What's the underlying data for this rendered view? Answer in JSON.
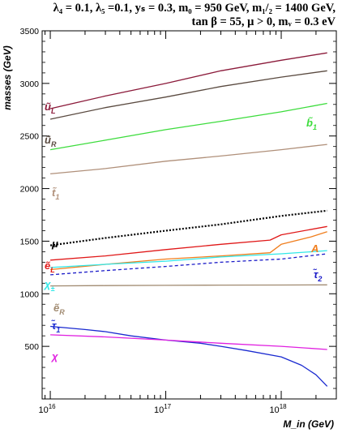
{
  "header": {
    "line1": "λ₄ = 0.1, λ₅ =0.1, yₛ = 0.3, m₀ = 950 GeV, m₁/₂ = 1400 GeV,",
    "line2": "tan β = 55,  μ > 0, mᵥ = 0.3 eV"
  },
  "chart_data": {
    "type": "line",
    "title": "",
    "xlabel": "M_in  (GeV)",
    "ylabel": "masses  (GeV)",
    "xscale": "log",
    "xlim": [
      8500000000000000.0,
      3e+18
    ],
    "ylim": [
      0,
      3500
    ],
    "xticks": [
      1e+16,
      1e+17,
      1e+18
    ],
    "xtick_labels": [
      "10^16",
      "10^17",
      "10^18"
    ],
    "yticks": [
      500,
      1000,
      1500,
      2000,
      2500,
      3000,
      3500
    ],
    "grid": false,
    "legend": "none",
    "series": [
      {
        "name": "ũ_L",
        "color": "#8b1a3a",
        "dash": "solid",
        "x": [
          1e+16,
          3e+16,
          1e+17,
          3e+17,
          1e+18,
          2.5e+18
        ],
        "y": [
          2760,
          2880,
          3000,
          3120,
          3220,
          3290
        ]
      },
      {
        "name": "ũ_R",
        "color": "#5a4a40",
        "dash": "solid",
        "x": [
          1e+16,
          3e+16,
          1e+17,
          3e+17,
          1e+18,
          2.5e+18
        ],
        "y": [
          2660,
          2770,
          2870,
          2970,
          3060,
          3120
        ]
      },
      {
        "name": "b̃₁",
        "color": "#3cdc3c",
        "dash": "solid",
        "x": [
          1e+16,
          3e+16,
          1e+17,
          3e+17,
          1e+18,
          2.5e+18
        ],
        "y": [
          2370,
          2460,
          2560,
          2640,
          2730,
          2810
        ]
      },
      {
        "name": "t̃₁",
        "color": "#b0907a",
        "dash": "solid",
        "x": [
          1e+16,
          3e+16,
          1e+17,
          3e+17,
          1e+18,
          2.5e+18
        ],
        "y": [
          2140,
          2190,
          2260,
          2310,
          2370,
          2420
        ]
      },
      {
        "name": "μ",
        "color": "#000000",
        "dash": "dotted",
        "x": [
          1e+16,
          3e+16,
          1e+17,
          3e+17,
          1e+18,
          2.5e+18
        ],
        "y": [
          1460,
          1530,
          1600,
          1660,
          1740,
          1790
        ]
      },
      {
        "name": "ẽ_L",
        "color": "#e01818",
        "dash": "solid",
        "x": [
          1e+16,
          3e+16,
          1e+17,
          3e+17,
          8e+17,
          1e+18,
          2.5e+18
        ],
        "y": [
          1320,
          1360,
          1420,
          1470,
          1510,
          1560,
          1640
        ]
      },
      {
        "name": "A",
        "color": "#f07e1e",
        "dash": "solid",
        "x": [
          1e+16,
          3e+16,
          1e+17,
          3e+17,
          8e+17,
          1e+18,
          1.8e+18,
          2.5e+18
        ],
        "y": [
          1230,
          1280,
          1330,
          1360,
          1390,
          1470,
          1540,
          1590
        ]
      },
      {
        "name": "χ±",
        "color": "#30e8e8",
        "dash": "solid",
        "x": [
          1e+16,
          3e+16,
          1e+17,
          3e+17,
          1e+18,
          2.5e+18
        ],
        "y": [
          1250,
          1280,
          1310,
          1350,
          1380,
          1410
        ]
      },
      {
        "name": "τ̃₂",
        "color": "#1a1ac8",
        "dash": "dashed",
        "x": [
          1e+16,
          3e+16,
          1e+17,
          3e+17,
          1e+18,
          2.5e+18
        ],
        "y": [
          1180,
          1220,
          1260,
          1300,
          1330,
          1380
        ]
      },
      {
        "name": "ẽ_R",
        "color": "#a08a70",
        "dash": "solid",
        "x": [
          1e+16,
          3e+16,
          1e+17,
          3e+17,
          1e+18,
          2.5e+18
        ],
        "y": [
          1075,
          1078,
          1080,
          1082,
          1083,
          1085
        ]
      },
      {
        "name": "τ̃₁",
        "color": "#1a2ad0",
        "dash": "solid",
        "x": [
          1e+16,
          2e+16,
          3e+16,
          5e+16,
          1e+17,
          2e+17,
          3e+17,
          5e+17,
          1e+18,
          1.5e+18,
          2e+18,
          2.5e+18
        ],
        "y": [
          690,
          660,
          640,
          600,
          560,
          530,
          500,
          460,
          400,
          320,
          230,
          120
        ]
      },
      {
        "name": "χ",
        "color": "#e020e0",
        "dash": "solid",
        "x": [
          1e+16,
          3e+16,
          1e+17,
          3e+17,
          1e+18,
          2.5e+18
        ],
        "y": [
          610,
          590,
          560,
          530,
          500,
          470
        ]
      }
    ],
    "labels": [
      {
        "series": "ũ_L",
        "text": "ũ",
        "sub": "L"
      },
      {
        "series": "ũ_R",
        "text": "ũ",
        "sub": "R"
      },
      {
        "series": "b̃₁",
        "text": "b̃",
        "sub": "1"
      },
      {
        "series": "t̃₁",
        "text": "t̃",
        "sub": "1"
      },
      {
        "series": "μ",
        "text": "μ",
        "sub": ""
      },
      {
        "series": "ẽ_L",
        "text": "ẽ",
        "sub": "L"
      },
      {
        "series": "A",
        "text": "A",
        "sub": ""
      },
      {
        "series": "χ±",
        "text": "χ",
        "sub": "±"
      },
      {
        "series": "τ̃₂",
        "text": "τ̃",
        "sub": "2"
      },
      {
        "series": "ẽ_R",
        "text": "ẽ",
        "sub": "R"
      },
      {
        "series": "τ̃₁",
        "text": "τ̃",
        "sub": "1"
      },
      {
        "series": "χ",
        "text": "χ",
        "sub": ""
      }
    ]
  }
}
